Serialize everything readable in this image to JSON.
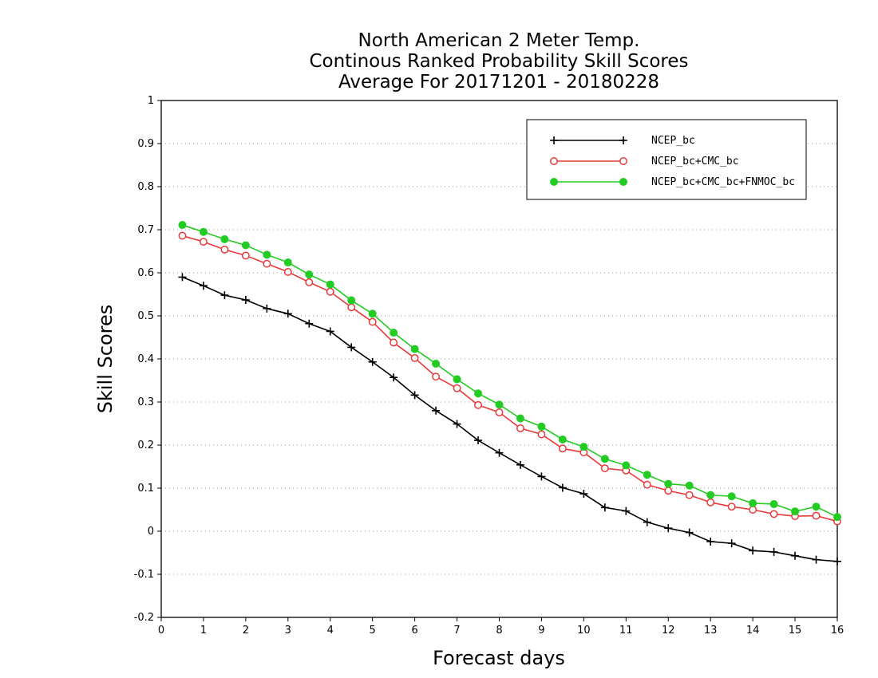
{
  "chart_data": {
    "type": "line",
    "title": [
      "North American 2 Meter Temp.",
      "Continous Ranked Probability Skill Scores",
      "Average For 20171201 - 20180228"
    ],
    "xlabel": "Forecast days",
    "ylabel": "Skill Scores",
    "xlim": [
      0,
      16
    ],
    "ylim": [
      -0.2,
      1
    ],
    "xticks": [
      0,
      1,
      2,
      3,
      4,
      5,
      6,
      7,
      8,
      9,
      10,
      11,
      12,
      13,
      14,
      15,
      16
    ],
    "yticks": [
      -0.2,
      -0.1,
      0,
      0.1,
      0.2,
      0.3,
      0.4,
      0.5,
      0.6,
      0.7,
      0.8,
      0.9,
      1
    ],
    "ytick_labels": [
      "-0.2",
      "-0.1",
      "0",
      "0.1",
      "0.2",
      "0.3",
      "0.4",
      "0.5",
      "0.6",
      "0.7",
      "0.8",
      "0.9",
      "1"
    ],
    "grid": "horizontal dotted",
    "legend_position": "top-right",
    "x": [
      0.5,
      1,
      1.5,
      2,
      2.5,
      3,
      3.5,
      4,
      4.5,
      5,
      5.5,
      6,
      6.5,
      7,
      7.5,
      8,
      8.5,
      9,
      9.5,
      10,
      10.5,
      11,
      11.5,
      12,
      12.5,
      13,
      13.5,
      14,
      14.5,
      15,
      15.5,
      16
    ],
    "series": [
      {
        "name": "NCEP_bc",
        "color": "#000000",
        "marker": "plus",
        "values": [
          0.59,
          0.57,
          0.548,
          0.537,
          0.517,
          0.505,
          0.482,
          0.464,
          0.427,
          0.393,
          0.357,
          0.316,
          0.28,
          0.249,
          0.211,
          0.182,
          0.154,
          0.127,
          0.101,
          0.087,
          0.055,
          0.047,
          0.021,
          0.007,
          -0.003,
          -0.024,
          -0.028,
          -0.045,
          -0.048,
          -0.057,
          -0.066,
          -0.07
        ]
      },
      {
        "name": "NCEP_bc+CMC_bc",
        "color": "#e83a3a",
        "marker": "open-circle",
        "values": [
          0.686,
          0.672,
          0.654,
          0.64,
          0.621,
          0.602,
          0.578,
          0.556,
          0.52,
          0.486,
          0.438,
          0.402,
          0.359,
          0.332,
          0.293,
          0.276,
          0.239,
          0.225,
          0.192,
          0.183,
          0.146,
          0.141,
          0.108,
          0.094,
          0.084,
          0.067,
          0.057,
          0.05,
          0.04,
          0.035,
          0.036,
          0.023
        ]
      },
      {
        "name": "NCEP_bc+CMC_bc+FNMOC_bc",
        "color": "#22cc22",
        "marker": "filled-circle",
        "values": [
          0.711,
          0.695,
          0.678,
          0.664,
          0.642,
          0.624,
          0.596,
          0.573,
          0.536,
          0.505,
          0.461,
          0.423,
          0.389,
          0.353,
          0.32,
          0.294,
          0.262,
          0.243,
          0.213,
          0.196,
          0.168,
          0.153,
          0.131,
          0.11,
          0.106,
          0.084,
          0.081,
          0.065,
          0.063,
          0.046,
          0.057,
          0.033
        ]
      }
    ]
  }
}
